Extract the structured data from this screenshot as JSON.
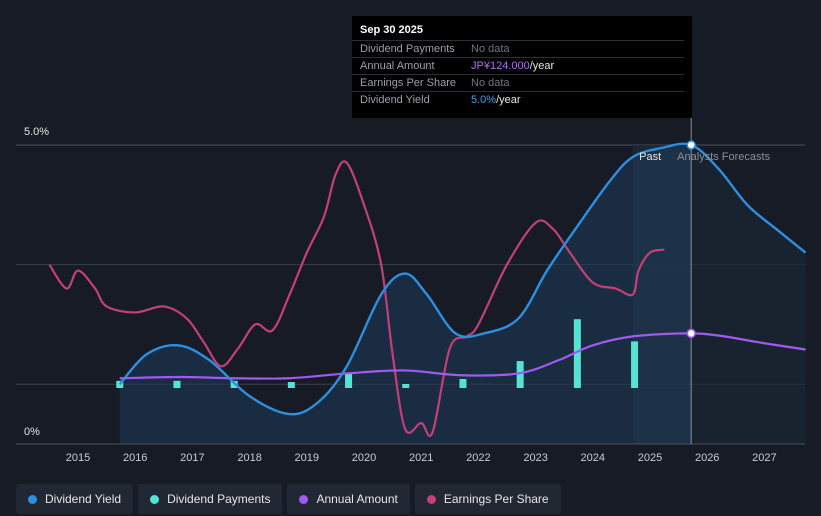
{
  "chart_data": {
    "type": "line",
    "ylabel_top": "5.0%",
    "ylabel_bottom": "0%",
    "ylim": [
      0,
      5.0
    ],
    "x_ticks": [
      "2015",
      "2016",
      "2017",
      "2018",
      "2019",
      "2020",
      "2021",
      "2022",
      "2023",
      "2024",
      "2025",
      "2026",
      "2027"
    ],
    "past_label": "Past",
    "forecast_label": "Analysts Forecasts",
    "series": [
      {
        "name": "Dividend Yield",
        "color": "#2e8fe0",
        "unit": "%",
        "points": [
          [
            2015.73,
            1.0
          ],
          [
            2016.2,
            1.5
          ],
          [
            2016.75,
            1.65
          ],
          [
            2017.3,
            1.4
          ],
          [
            2018.0,
            0.8
          ],
          [
            2018.7,
            0.5
          ],
          [
            2019.2,
            0.7
          ],
          [
            2019.7,
            1.3
          ],
          [
            2020.3,
            2.5
          ],
          [
            2020.72,
            2.85
          ],
          [
            2021.1,
            2.5
          ],
          [
            2021.6,
            1.85
          ],
          [
            2022.1,
            1.85
          ],
          [
            2022.7,
            2.1
          ],
          [
            2023.2,
            2.9
          ],
          [
            2023.7,
            3.6
          ],
          [
            2024.3,
            4.4
          ],
          [
            2024.7,
            4.8
          ],
          [
            2025.2,
            4.95
          ],
          [
            2025.72,
            5.0
          ],
          [
            2026.2,
            4.6
          ],
          [
            2026.7,
            4.0
          ],
          [
            2027.2,
            3.6
          ],
          [
            2027.72,
            3.2
          ]
        ]
      },
      {
        "name": "Annual Amount",
        "color": "#a05af0",
        "unit": "JPY",
        "points": [
          [
            2015.73,
            1.1
          ],
          [
            2016.8,
            1.12
          ],
          [
            2017.7,
            1.1
          ],
          [
            2018.7,
            1.1
          ],
          [
            2019.7,
            1.18
          ],
          [
            2020.7,
            1.23
          ],
          [
            2021.7,
            1.15
          ],
          [
            2022.7,
            1.18
          ],
          [
            2023.4,
            1.4
          ],
          [
            2024.0,
            1.65
          ],
          [
            2024.7,
            1.8
          ],
          [
            2025.72,
            1.85
          ],
          [
            2026.3,
            1.8
          ],
          [
            2026.9,
            1.7
          ],
          [
            2027.72,
            1.58
          ]
        ]
      },
      {
        "name": "Earnings Per Share",
        "color": "#c43f78",
        "unit": "JPY",
        "points": [
          [
            2014.5,
            3.0
          ],
          [
            2014.8,
            2.6
          ],
          [
            2015.0,
            2.9
          ],
          [
            2015.3,
            2.6
          ],
          [
            2015.5,
            2.3
          ],
          [
            2016.0,
            2.2
          ],
          [
            2016.5,
            2.3
          ],
          [
            2016.9,
            2.1
          ],
          [
            2017.2,
            1.7
          ],
          [
            2017.5,
            1.3
          ],
          [
            2017.8,
            1.6
          ],
          [
            2018.1,
            2.0
          ],
          [
            2018.4,
            1.9
          ],
          [
            2018.7,
            2.5
          ],
          [
            2019.0,
            3.2
          ],
          [
            2019.3,
            3.8
          ],
          [
            2019.5,
            4.5
          ],
          [
            2019.7,
            4.7
          ],
          [
            2020.0,
            4.0
          ],
          [
            2020.3,
            3.0
          ],
          [
            2020.5,
            1.5
          ],
          [
            2020.72,
            0.25
          ],
          [
            2021.0,
            0.35
          ],
          [
            2021.2,
            0.2
          ],
          [
            2021.5,
            1.6
          ],
          [
            2021.8,
            1.8
          ],
          [
            2022.0,
            2.0
          ],
          [
            2022.5,
            3.0
          ],
          [
            2023.0,
            3.7
          ],
          [
            2023.3,
            3.6
          ],
          [
            2023.6,
            3.2
          ],
          [
            2024.0,
            2.7
          ],
          [
            2024.4,
            2.6
          ],
          [
            2024.7,
            2.5
          ],
          [
            2024.8,
            2.9
          ],
          [
            2025.0,
            3.2
          ],
          [
            2025.25,
            3.25
          ]
        ]
      },
      {
        "name": "Dividend Payments",
        "color": "#55e3d3",
        "unit": "JPY",
        "bars": [
          [
            2015.73,
            0.12
          ],
          [
            2016.73,
            0.12
          ],
          [
            2017.73,
            0.12
          ],
          [
            2018.73,
            0.1
          ],
          [
            2019.73,
            0.25
          ],
          [
            2020.73,
            0.06
          ],
          [
            2021.73,
            0.15
          ],
          [
            2022.73,
            0.45
          ],
          [
            2023.73,
            1.15
          ],
          [
            2024.73,
            0.78
          ]
        ]
      }
    ],
    "tooltip": {
      "date": "Sep 30 2025",
      "rows": [
        {
          "label": "Dividend Payments",
          "value": "No data",
          "style": "muted"
        },
        {
          "label": "Annual Amount",
          "value": "JP¥124.000",
          "suffix": "/year",
          "style": "purple"
        },
        {
          "label": "Earnings Per Share",
          "value": "No data",
          "style": "muted"
        },
        {
          "label": "Dividend Yield",
          "value": "5.0%",
          "suffix": "/year",
          "style": "blue"
        }
      ]
    },
    "legend": [
      {
        "label": "Dividend Yield",
        "color": "#2e8fe0"
      },
      {
        "label": "Dividend Payments",
        "color": "#55e3d3"
      },
      {
        "label": "Annual Amount",
        "color": "#a05af0"
      },
      {
        "label": "Earnings Per Share",
        "color": "#c43f78"
      }
    ]
  }
}
